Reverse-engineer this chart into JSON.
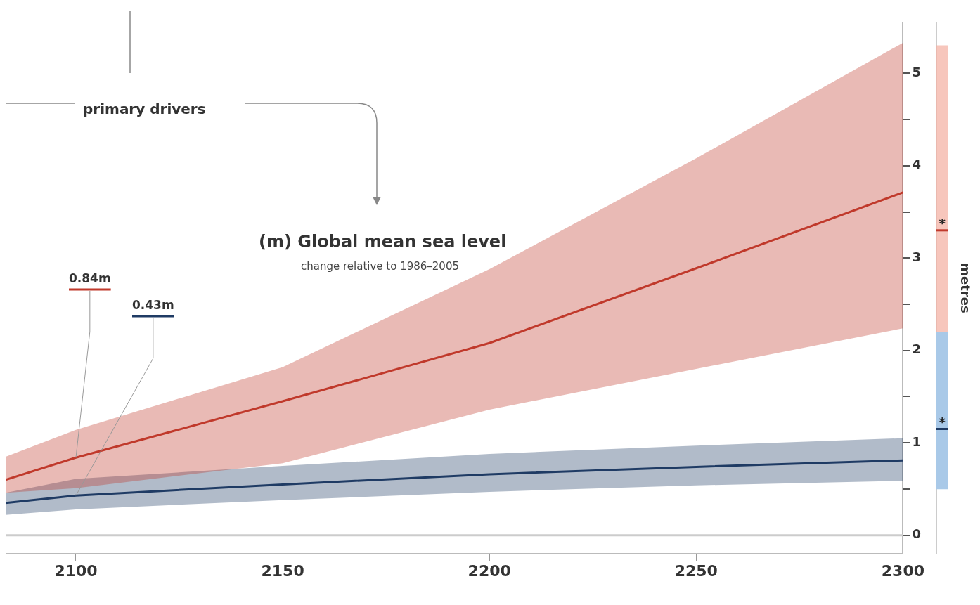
{
  "chart_data": [
    {
      "type": "line",
      "title": "(m) Global mean sea level",
      "subtitle": "change relative to 1986–2005",
      "x": [
        2083,
        2100,
        2150,
        2200,
        2250,
        2300
      ],
      "series": [
        {
          "color": "#c0392b",
          "values": [
            0.6,
            0.84,
            1.45,
            2.08,
            2.89,
            3.71
          ],
          "lower": [
            0.46,
            0.51,
            0.78,
            1.36,
            1.8,
            2.24
          ],
          "upper": [
            0.85,
            1.14,
            1.82,
            2.88,
            4.08,
            5.33
          ]
        },
        {
          "color": "#1f3b64",
          "values": [
            0.35,
            0.43,
            0.55,
            0.66,
            0.74,
            0.81
          ],
          "lower": [
            0.22,
            0.28,
            0.38,
            0.47,
            0.54,
            0.59
          ],
          "upper": [
            0.46,
            0.61,
            0.75,
            0.88,
            0.97,
            1.05
          ]
        }
      ],
      "xlim": [
        2083,
        2300
      ],
      "xticks": [
        2100,
        2150,
        2200,
        2250,
        2300
      ],
      "ylim": [
        -0.2,
        5.55
      ],
      "yticks": [
        0,
        {
          "value": 0.5,
          "label": null
        },
        1,
        {
          "value": 1.5,
          "label": null
        },
        2,
        {
          "value": 2.5,
          "label": null
        },
        3,
        {
          "value": 3.5,
          "label": null
        },
        4,
        {
          "value": 4.5,
          "label": null
        },
        5
      ],
      "ref_lines": [
        {
          "axis": "y",
          "value": 0,
          "color": "#cccccc"
        }
      ],
      "annotations": [
        {
          "text": "0.84m",
          "x": 2100,
          "y": 0.84
        },
        {
          "text": "0.43m",
          "x": 2100,
          "y": 0.43
        },
        "primary drivers"
      ],
      "grid": false,
      "legend": false
    },
    {
      "type": "bar",
      "categories": [
        null
      ],
      "ylabel": "metres",
      "series": [
        {
          "color": "#a9c9e8",
          "values": [
            1.7
          ],
          "base": [
            0.5
          ]
        },
        {
          "color": "#f4b3a6",
          "values": [
            3.3
          ],
          "base": [
            2.0
          ]
        }
      ],
      "ylim": [
        -0.2,
        5.55
      ],
      "ref_lines": [
        {
          "axis": "y",
          "value": 3.3,
          "color": "#c0392b"
        },
        {
          "axis": "y",
          "value": 1.15,
          "color": "#1f3b64"
        }
      ],
      "annotations": [
        "*",
        "*"
      ],
      "grid": false,
      "legend": false
    }
  ]
}
